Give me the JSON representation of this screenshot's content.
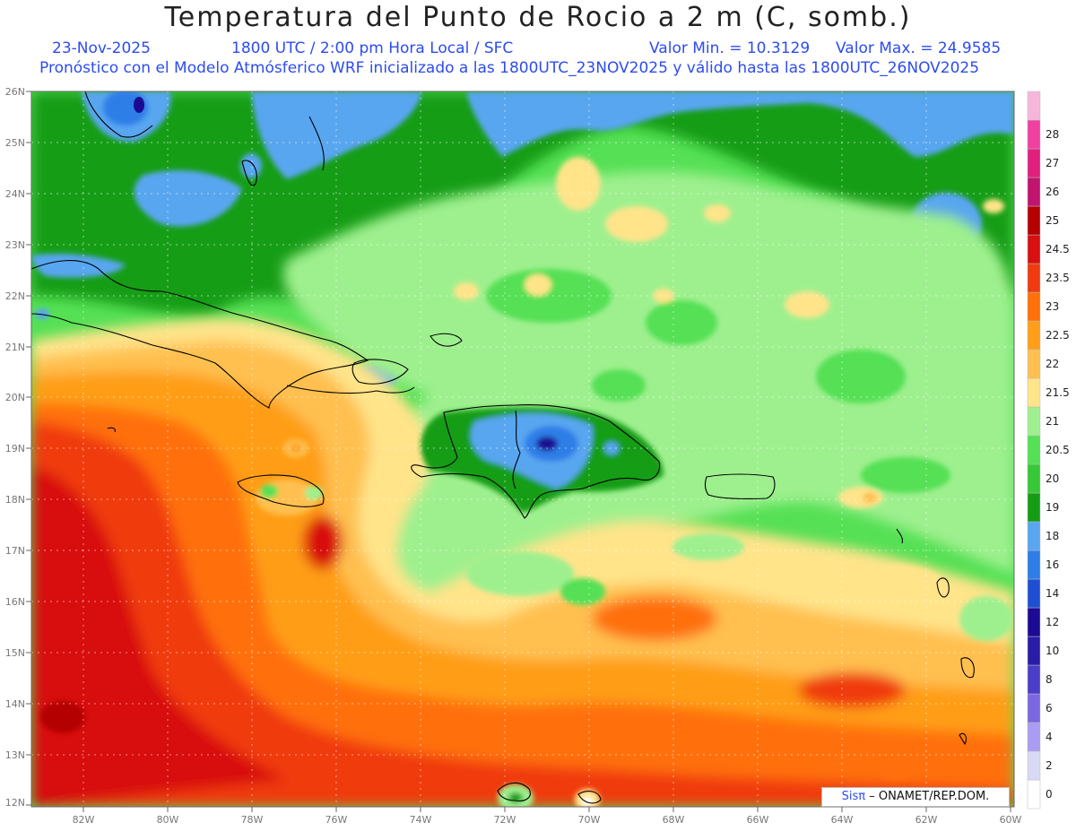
{
  "header": {
    "title": "Temperatura del Punto de Rocio a 2 m (C, somb.)",
    "date": "23-Nov-2025",
    "time_info": "1800 UTC / 2:00 pm Hora Local / SFC",
    "value_min": "Valor Min. = 10.3129",
    "value_max": "Valor Max. = 24.9585",
    "forecast_info": "Pronóstico con el Modelo Atmósferico WRF inicializado a las 1800UTC_23NOV2025 y válido hasta las  1800UTC_26NOV2025"
  },
  "map": {
    "lat_labels": [
      "26N",
      "25N",
      "24N",
      "23N",
      "22N",
      "21N",
      "20N",
      "19N",
      "18N",
      "17N",
      "16N",
      "15N",
      "14N",
      "13N",
      "12N"
    ],
    "lon_labels": [
      "82W",
      "80W",
      "78W",
      "76W",
      "74W",
      "72W",
      "70W",
      "68W",
      "66W",
      "64W",
      "62W",
      "60W"
    ],
    "credit_logo": "Sisπ",
    "credit_text": "– ONAMET/REP.DOM."
  },
  "colorbar": {
    "levels": [
      {
        "label": "0",
        "color": "#ffffff"
      },
      {
        "label": "2",
        "color": "#d9d9f5"
      },
      {
        "label": "4",
        "color": "#a99cf2"
      },
      {
        "label": "6",
        "color": "#7b68e0"
      },
      {
        "label": "8",
        "color": "#4b3dc8"
      },
      {
        "label": "10",
        "color": "#2a1ca8"
      },
      {
        "label": "12",
        "color": "#1c0a93"
      },
      {
        "label": "14",
        "color": "#1e4fd2"
      },
      {
        "label": "16",
        "color": "#2f7ee8"
      },
      {
        "label": "18",
        "color": "#58a6f0"
      },
      {
        "label": "19",
        "color": "#149d14"
      },
      {
        "label": "20",
        "color": "#37c837"
      },
      {
        "label": "20.5",
        "color": "#55e055"
      },
      {
        "label": "21",
        "color": "#9ef08e"
      },
      {
        "label": "21.5",
        "color": "#ffe48a"
      },
      {
        "label": "22",
        "color": "#ffc050"
      },
      {
        "label": "22.5",
        "color": "#ff9e18"
      },
      {
        "label": "23",
        "color": "#ff7008"
      },
      {
        "label": "23.5",
        "color": "#f03a10"
      },
      {
        "label": "24.5",
        "color": "#d81010"
      },
      {
        "label": "25",
        "color": "#b40000"
      },
      {
        "label": "26",
        "color": "#c0146e"
      },
      {
        "label": "27",
        "color": "#e0207c"
      },
      {
        "label": "28",
        "color": "#f040a0"
      },
      {
        "label": "",
        "color": "#f6b6da"
      }
    ]
  }
}
